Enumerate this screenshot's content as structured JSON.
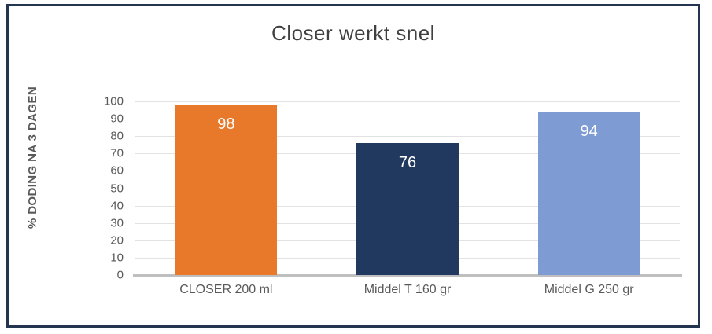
{
  "frame": {
    "border_color": "#24364F",
    "background": "#FFFFFF"
  },
  "chart_data": {
    "type": "bar",
    "title": "Closer werkt snel",
    "xlabel": "",
    "ylabel": "% DODING NA 3 DAGEN",
    "categories": [
      "CLOSER 200 ml",
      "Middel T 160 gr",
      "Middel G 250 gr"
    ],
    "values": [
      98,
      76,
      94
    ],
    "bar_colors": [
      "#E8792B",
      "#22395F",
      "#7E9BD4"
    ],
    "data_label_color": "#FFFFFF",
    "ylim": [
      0,
      100
    ],
    "ytick_step": 10,
    "grid": "horizontal",
    "legend": "none"
  },
  "styles": {
    "title_color": "#404040",
    "axis_text_color": "#595959",
    "gridline_color": "#E3E3E3",
    "baseline_color": "#BFBFBF"
  }
}
